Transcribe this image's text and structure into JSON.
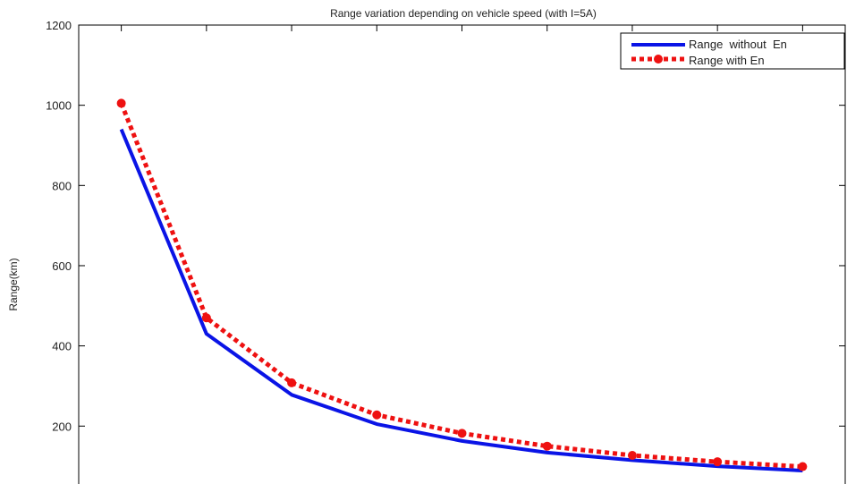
{
  "chart_data": {
    "type": "line",
    "title": "Range variation depending on vehicle speed (with I=5A)",
    "xlabel": "",
    "ylabel": "Range(km)",
    "ylim": [
      40,
      1200
    ],
    "yticks": [
      200,
      400,
      600,
      800,
      1000,
      1200
    ],
    "x": [
      1,
      2,
      3,
      4,
      5,
      6,
      7,
      8,
      9
    ],
    "grid": false,
    "legend_position": "top-right",
    "series": [
      {
        "name": "Range  without  En",
        "values": [
          940,
          430,
          278,
          205,
          163,
          134,
          115,
          100,
          89
        ],
        "color": "#0a14e6",
        "style": "solid",
        "marker": "none"
      },
      {
        "name": "Range with En",
        "values": [
          1005,
          470,
          308,
          228,
          182,
          150,
          127,
          111,
          99
        ],
        "color": "#ee1111",
        "style": "dotted",
        "marker": "circle"
      }
    ]
  }
}
